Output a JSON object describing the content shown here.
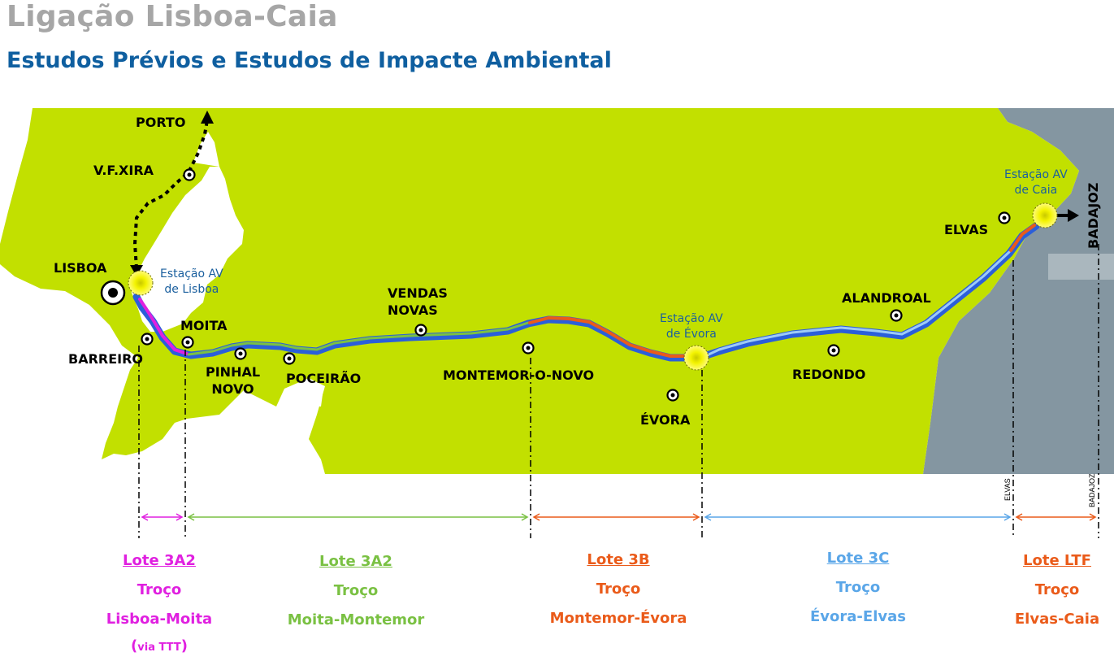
{
  "header": {
    "title": "Ligação Lisboa-Caia",
    "subtitle": "Estudos Prévios e Estudos de Impacte Ambiental"
  },
  "places": {
    "porto": "PORTO",
    "vfxira": "V.F.XIRA",
    "lisboa": "LISBOA",
    "barreiro": "BARREIRO",
    "moita": "MOITA",
    "pinhal_novo_1": "PINHAL",
    "pinhal_novo_2": "NOVO",
    "poceirao": "POCEIRÃO",
    "vendas_novas_1": "VENDAS",
    "vendas_novas_2": "NOVAS",
    "montemor": "MONTEMOR-O-NOVO",
    "evora": "ÉVORA",
    "redondo": "REDONDO",
    "alandroal": "ALANDROAL",
    "elvas": "ELVAS",
    "badajoz": "BADAJOZ"
  },
  "stations": {
    "lisboa_1": "Estação AV",
    "lisboa_2": "de Lisboa",
    "evora_1": "Estação AV",
    "evora_2": "de Évora",
    "caia_1": "Estação AV",
    "caia_2": "de Caia"
  },
  "axis_labels": {
    "elvas": "ELVAS",
    "badajoz": "BADAJOZ"
  },
  "lots": [
    {
      "name": "Lote 3A2",
      "troco": "Troço",
      "section": "Lisboa-Moita",
      "via_open": "(",
      "via": "via TTT",
      "via_close": ")",
      "color": "#e020e0"
    },
    {
      "name": "Lote 3A2",
      "troco": "Troço",
      "section": "Moita-Montemor",
      "color": "#7ac143"
    },
    {
      "name": "Lote 3B",
      "troco": "Troço",
      "section": "Montemor-Évora",
      "color": "#ea5b1a"
    },
    {
      "name": "Lote 3C",
      "troco": "Troço",
      "section": "Évora-Elvas",
      "color": "#5aa6e8"
    },
    {
      "name": "Lote LTF",
      "troco": "Troço",
      "section": "Elvas-Caia",
      "color": "#ea5b1a"
    }
  ],
  "colors": {
    "land": "#c2e000",
    "spain": "#8496a1",
    "route": "#2b5fd9",
    "title": "#a6a6a6",
    "subtitle": "#0f5fa0"
  }
}
